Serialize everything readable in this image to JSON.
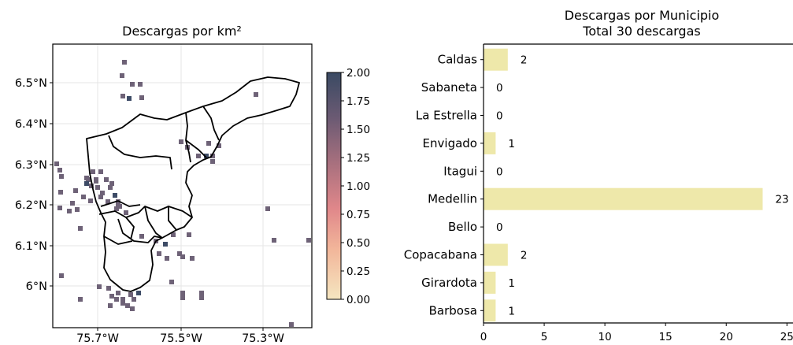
{
  "map_panel": {
    "title": "Descargas por km²",
    "x_ticks": [
      "75.7°W",
      "75.5°W",
      "75.3°W"
    ],
    "y_ticks": [
      "6.5°N",
      "6.4°N",
      "6.3°N",
      "6.2°N",
      "6.1°N",
      "6°N"
    ],
    "colorbar": {
      "min": 0.0,
      "max": 2.0,
      "tick_labels": [
        "0.00",
        "0.25",
        "0.50",
        "0.75",
        "1.00",
        "1.25",
        "1.50",
        "1.75",
        "2.00"
      ],
      "colors": [
        "#f5e6c0",
        "#f2b69a",
        "#e0878a",
        "#a8707e",
        "#6b5a73",
        "#3a4a63"
      ]
    }
  },
  "chart_data": {
    "type": "bar",
    "orientation": "horizontal",
    "title": "Descargas por Municipio",
    "subtitle": "Total 30 descargas",
    "categories": [
      "Caldas",
      "Sabaneta",
      "La Estrella",
      "Envigado",
      "Itagui",
      "Medellin",
      "Bello",
      "Copacabana",
      "Girardota",
      "Barbosa"
    ],
    "values": [
      2,
      0,
      0,
      1,
      0,
      23,
      0,
      2,
      1,
      1
    ],
    "x_ticks": [
      "0",
      "5",
      "10",
      "15",
      "20",
      "25"
    ],
    "xlim": [
      0,
      25.5
    ],
    "bar_color": "#eee8aa"
  }
}
